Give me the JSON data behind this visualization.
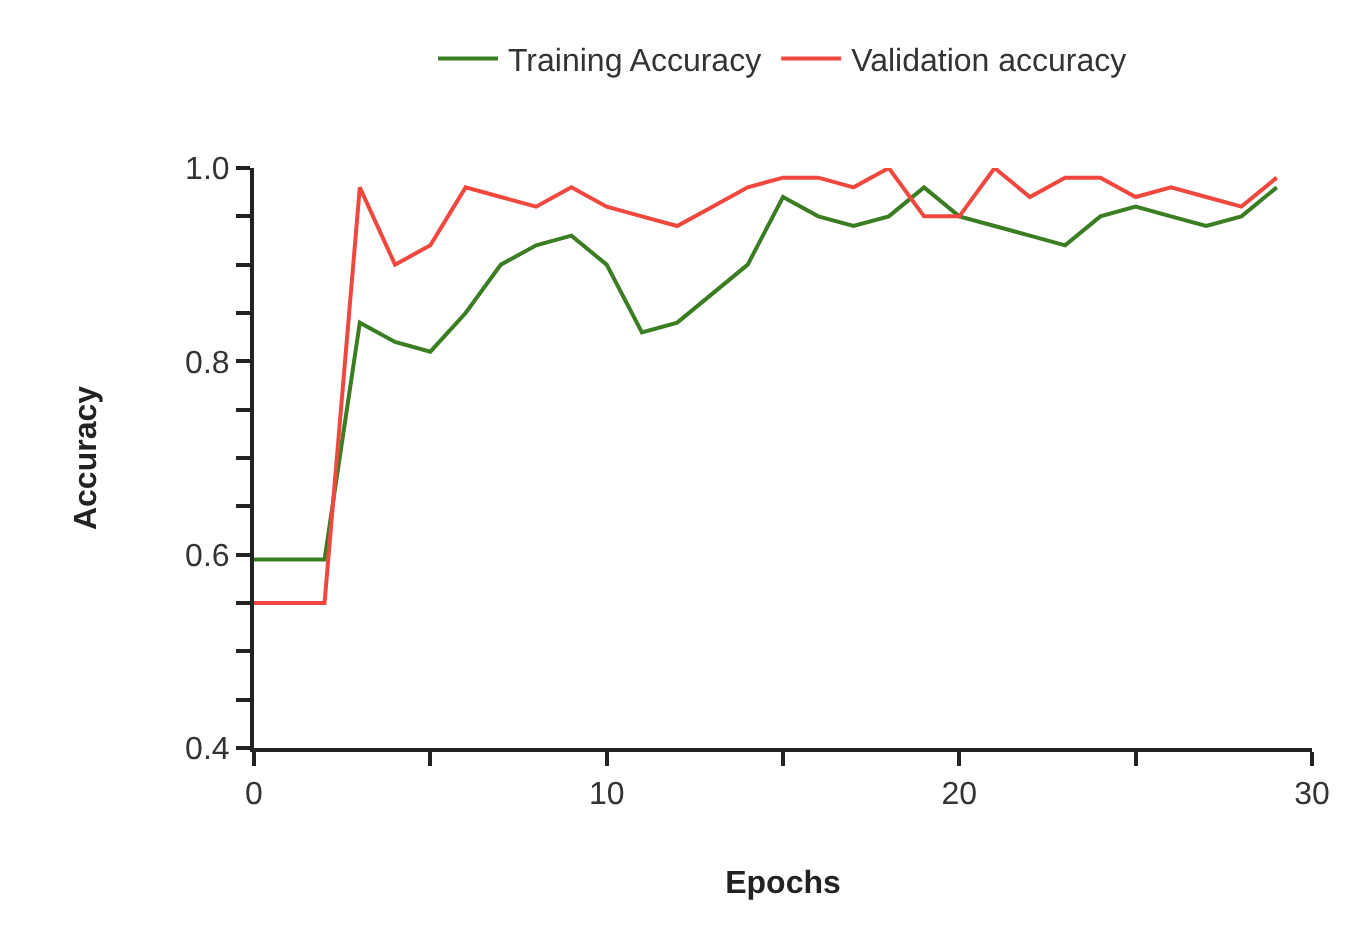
{
  "chart_data": {
    "type": "line",
    "xlabel": "Epochs",
    "ylabel": "Accuracy",
    "x": [
      0,
      1,
      2,
      3,
      4,
      5,
      6,
      7,
      8,
      9,
      10,
      11,
      12,
      13,
      14,
      15,
      16,
      17,
      18,
      19,
      20,
      21,
      22,
      23,
      24,
      25,
      26,
      27,
      28,
      29
    ],
    "series": [
      {
        "name": "Training Accuracy",
        "color": "#3a7d22",
        "values": [
          0.595,
          0.595,
          0.595,
          0.84,
          0.82,
          0.81,
          0.85,
          0.9,
          0.92,
          0.93,
          0.9,
          0.83,
          0.84,
          0.87,
          0.9,
          0.97,
          0.95,
          0.94,
          0.95,
          0.98,
          0.95,
          0.94,
          0.93,
          0.92,
          0.95,
          0.96,
          0.95,
          0.94,
          0.95,
          0.98
        ]
      },
      {
        "name": "Validation accuracy",
        "color": "#f0483e",
        "values": [
          0.55,
          0.55,
          0.55,
          0.98,
          0.9,
          0.92,
          0.98,
          0.97,
          0.96,
          0.98,
          0.96,
          0.95,
          0.94,
          0.96,
          0.98,
          0.99,
          0.99,
          0.98,
          1.0,
          0.95,
          0.95,
          1.0,
          0.97,
          0.99,
          0.99,
          0.97,
          0.98,
          0.97,
          0.96,
          0.99
        ]
      }
    ],
    "xlim": [
      0,
      30
    ],
    "ylim": [
      0.4,
      1.0
    ],
    "xticks": [
      0,
      {
        "value": 5,
        "label": null
      },
      10,
      {
        "value": 15,
        "label": null
      },
      20,
      {
        "value": 25,
        "label": null
      },
      30
    ],
    "yticks": [
      {
        "value": 0.4,
        "label": "0.4"
      },
      {
        "value": 0.45,
        "label": null
      },
      {
        "value": 0.5,
        "label": null
      },
      {
        "value": 0.55,
        "label": null
      },
      {
        "value": 0.6,
        "label": "0.6"
      },
      {
        "value": 0.65,
        "label": null
      },
      {
        "value": 0.7,
        "label": null
      },
      {
        "value": 0.75,
        "label": null
      },
      {
        "value": 0.8,
        "label": "0.8"
      },
      {
        "value": 0.85,
        "label": null
      },
      {
        "value": 0.9,
        "label": null
      },
      {
        "value": 0.95,
        "label": null
      },
      {
        "value": 1.0,
        "label": "1.0"
      }
    ],
    "legend": "top",
    "marker": "none",
    "line_style": "solid"
  }
}
